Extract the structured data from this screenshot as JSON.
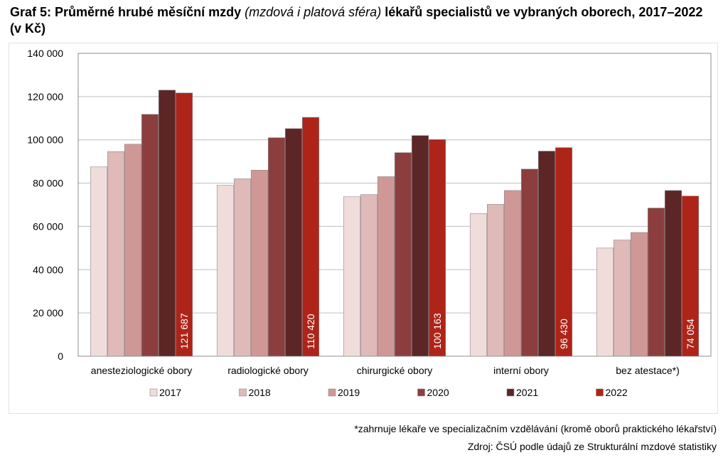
{
  "title": {
    "part1": "Graf 5: Průměrné hrubé měsíční mzdy ",
    "part2": "(mzdová i platová sféra)",
    "part3": " lékařů specialistů ve vybraných oborech, 2017–2022 (v Kč)"
  },
  "notes": {
    "footnote": "*zahrnuje lékaře ve specializačním vzdělávání (kromě oborů praktického lékařství)",
    "source": "Zdroj: ČSÚ podle údajů ze Strukturální mzdové statistiky"
  },
  "chart_data": {
    "type": "bar",
    "categories": [
      "anesteziologické obory",
      "radiologické obory",
      "chirurgické obory",
      "interní obory",
      "bez atestace*)"
    ],
    "series": [
      {
        "name": "2017",
        "color": "#f1dcdc",
        "values": [
          87500,
          79000,
          73700,
          65900,
          50000
        ]
      },
      {
        "name": "2018",
        "color": "#e0b9b9",
        "values": [
          94600,
          82000,
          74700,
          70200,
          53700
        ]
      },
      {
        "name": "2019",
        "color": "#cf9896",
        "values": [
          98000,
          86000,
          83000,
          76600,
          57200
        ]
      },
      {
        "name": "2020",
        "color": "#8c3e3e",
        "values": [
          111800,
          101000,
          94100,
          86500,
          68500
        ]
      },
      {
        "name": "2021",
        "color": "#5c2626",
        "values": [
          123000,
          105200,
          102000,
          94800,
          76600
        ]
      },
      {
        "name": "2022",
        "color": "#ae2419",
        "values": [
          121687,
          110420,
          100163,
          96430,
          74054
        ]
      }
    ],
    "data_labels": [
      "121 687",
      "110 420",
      "100 163",
      "96 430",
      "74 054"
    ],
    "y_ticks": [
      "0",
      "20 000",
      "40 000",
      "60 000",
      "80 000",
      "100 000",
      "120 000",
      "140 000"
    ],
    "ylim": [
      0,
      140000
    ],
    "grid": true,
    "legend_position": "bottom"
  }
}
